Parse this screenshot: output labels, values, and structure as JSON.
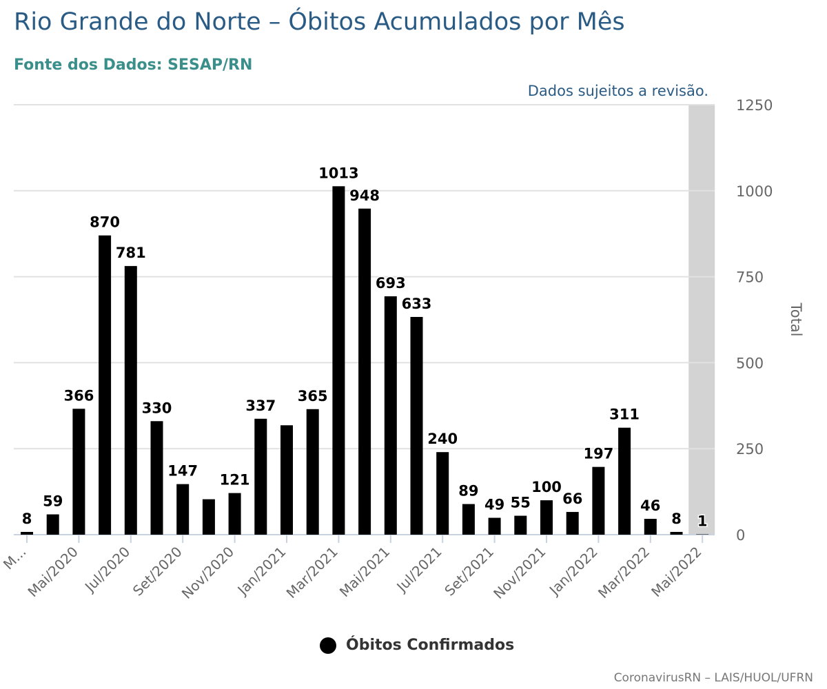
{
  "header": {
    "title": "Rio Grande do Norte – Óbitos Acumulados por Mês",
    "subtitle": "Fonte dos Dados: SESAP/RN",
    "note": "Dados sujeitos a revisão."
  },
  "credits": "CoronavirusRN – LAIS/HUOL/UFRN",
  "chart_data": {
    "type": "bar",
    "title": "Rio Grande do Norte – Óbitos Acumulados por Mês",
    "ylabel": "Total",
    "ylim": [
      0,
      1250
    ],
    "yticks": [
      "0",
      "250",
      "500",
      "750",
      "1000",
      "1250"
    ],
    "legend_position": "bottom",
    "series": [
      {
        "name": "Óbitos Confirmados",
        "color": "#000000",
        "values": [
          8,
          59,
          366,
          870,
          781,
          330,
          147,
          103,
          121,
          337,
          318,
          365,
          1013,
          948,
          693,
          633,
          240,
          89,
          49,
          55,
          100,
          66,
          197,
          311,
          46,
          8,
          1
        ],
        "data_labels": [
          "8",
          "59",
          "366",
          "870",
          "781",
          "330",
          "147",
          "",
          "121",
          "337",
          "",
          "365",
          "1013",
          "948",
          "693",
          "633",
          "240",
          "89",
          "49",
          "55",
          "100",
          "66",
          "197",
          "311",
          "46",
          "8",
          "1"
        ]
      }
    ],
    "x_tick_labels": [
      "M...",
      "Mai/2020",
      "Jul/2020",
      "Set/2020",
      "Nov/2020",
      "Jan/2021",
      "Mar/2021",
      "Mai/2021",
      "Jul/2021",
      "Set/2021",
      "Nov/2021",
      "Jan/2022",
      "Mar/2022",
      "Mai/2022"
    ],
    "highlight_band": "last-month"
  }
}
